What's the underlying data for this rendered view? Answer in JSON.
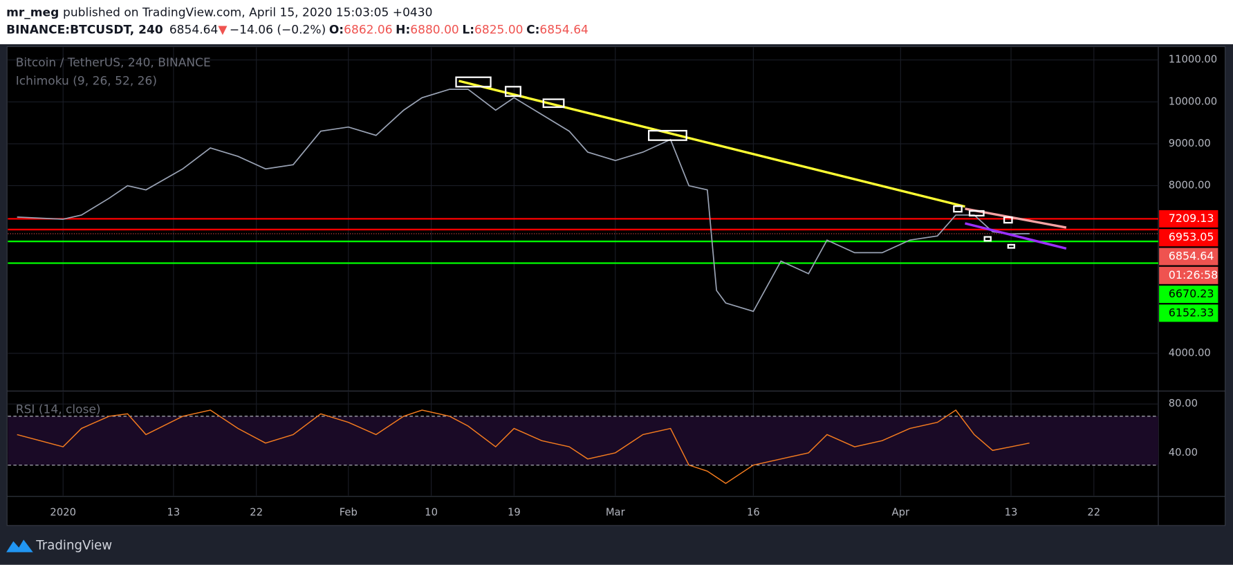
{
  "header": {
    "author": "mr_meg",
    "published": "published on TradingView.com, April 15, 2020 15:03:05 +0430",
    "symbol": "BINANCE:BTCUSDT, 240",
    "change": "−14.06 (−0.2%)",
    "ohlc": [
      {
        "label": "O:",
        "value": "6862.06"
      },
      {
        "label": "H:",
        "value": "6880.00"
      },
      {
        "label": "L:",
        "value": "6825.00"
      },
      {
        "label": "C:",
        "value": "6854.64"
      }
    ]
  },
  "footer": {
    "brand": "TradingView"
  },
  "chart_data": {
    "type": "line",
    "legend": [
      "Bitcoin / TetherUS, 240, BINANCE",
      "Ichimoku (9, 26, 52, 26)"
    ],
    "x": [
      "2019-12-27",
      "2020-01-01",
      "2020-01-03",
      "2020-01-06",
      "2020-01-08",
      "2020-01-10",
      "2020-01-14",
      "2020-01-17",
      "2020-01-20",
      "2020-01-23",
      "2020-01-26",
      "2020-01-29",
      "2020-02-01",
      "2020-02-04",
      "2020-02-07",
      "2020-02-09",
      "2020-02-12",
      "2020-02-14",
      "2020-02-17",
      "2020-02-19",
      "2020-02-22",
      "2020-02-25",
      "2020-02-27",
      "2020-03-01",
      "2020-03-04",
      "2020-03-07",
      "2020-03-09",
      "2020-03-11",
      "2020-03-12",
      "2020-03-13",
      "2020-03-16",
      "2020-03-19",
      "2020-03-22",
      "2020-03-24",
      "2020-03-27",
      "2020-03-30",
      "2020-04-02",
      "2020-04-05",
      "2020-04-07",
      "2020-04-09",
      "2020-04-11",
      "2020-04-13",
      "2020-04-15"
    ],
    "series": [
      {
        "color": "#9aa3b5",
        "values": [
          7250,
          7200,
          7300,
          7700,
          8000,
          7900,
          8400,
          8900,
          8700,
          8400,
          8500,
          9300,
          9400,
          9200,
          9800,
          10100,
          10300,
          10300,
          9800,
          10100,
          9700,
          9300,
          8800,
          8600,
          8800,
          9100,
          8000,
          7900,
          5500,
          5200,
          5000,
          6200,
          5900,
          6700,
          6400,
          6400,
          6700,
          6800,
          7300,
          7300,
          6900,
          6850,
          6854.64
        ]
      }
    ],
    "xlim": [
      "2019-12-26",
      "2020-04-29"
    ],
    "xticks": [
      {
        "value": "2020-01-01",
        "label": "2020"
      },
      {
        "value": "2020-01-13",
        "label": "13"
      },
      {
        "value": "2020-01-22",
        "label": "22"
      },
      {
        "value": "2020-02-01",
        "label": "Feb"
      },
      {
        "value": "2020-02-10",
        "label": "10"
      },
      {
        "value": "2020-02-19",
        "label": "19"
      },
      {
        "value": "2020-03-01",
        "label": "Mar"
      },
      {
        "value": "2020-03-16",
        "label": "16"
      },
      {
        "value": "2020-04-01",
        "label": "Apr"
      },
      {
        "value": "2020-04-13",
        "label": "13"
      },
      {
        "value": "2020-04-22",
        "label": "22"
      }
    ],
    "ylim": [
      3100,
      11300
    ],
    "yticks": [
      {
        "value": 4000,
        "label": "4000.00"
      },
      {
        "value": 8000,
        "label": "8000.00"
      },
      {
        "value": 9000,
        "label": "9000.00"
      },
      {
        "value": 10000,
        "label": "10000.00"
      },
      {
        "value": 11000,
        "label": "11000.00"
      }
    ],
    "grid": true,
    "levels": [
      {
        "value": 7209.13,
        "color": "#ff0000"
      },
      {
        "value": 6953.05,
        "color": "#ff0000"
      },
      {
        "value": 6670.23,
        "color": "#00ff00"
      },
      {
        "value": 6152.33,
        "color": "#00ff00"
      }
    ],
    "last_price": 6854.64,
    "last_color": "#ef5350",
    "countdown": "01:26:58",
    "trendlines": [
      {
        "color": "#ffff33",
        "start": [
          "2020-02-13",
          10500
        ],
        "end": [
          "2020-04-08",
          7500
        ]
      },
      {
        "color": "#f4a3a3",
        "start": [
          "2020-04-08",
          7450
        ],
        "end": [
          "2020-04-19",
          7000
        ]
      },
      {
        "color": "#9b30ff",
        "start": [
          "2020-04-08",
          7100
        ],
        "end": [
          "2020-04-19",
          6500
        ]
      }
    ],
    "rsi": {
      "name": "RSI (14, close)",
      "color": "#f57c1f",
      "values": [
        55,
        45,
        60,
        70,
        72,
        55,
        70,
        75,
        60,
        48,
        55,
        72,
        65,
        55,
        70,
        75,
        70,
        62,
        45,
        60,
        50,
        45,
        35,
        40,
        55,
        60,
        30,
        25,
        20,
        15,
        30,
        35,
        40,
        55,
        45,
        50,
        60,
        65,
        75,
        55,
        42,
        45,
        48
      ],
      "ylim": [
        5,
        90
      ],
      "yticks": [
        {
          "value": 80,
          "label": "80.00"
        },
        {
          "value": 40,
          "label": "40.00"
        }
      ],
      "bands": [
        30,
        70
      ]
    }
  }
}
